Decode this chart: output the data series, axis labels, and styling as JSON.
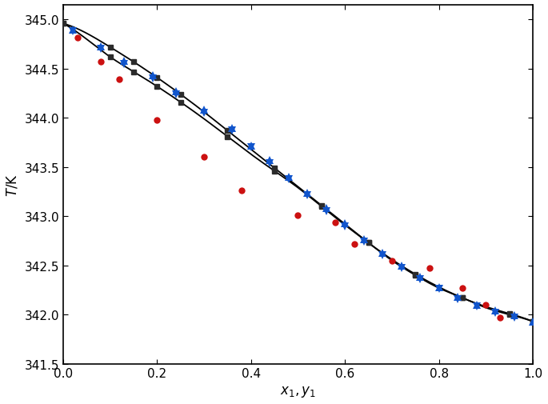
{
  "xlabel": "$x_1,y_1$",
  "ylabel": "$T$/K",
  "xlim": [
    0.0,
    1.0
  ],
  "ylim": [
    341.5,
    345.15
  ],
  "yticks": [
    341.5,
    342.0,
    342.5,
    343.0,
    343.5,
    344.0,
    344.5,
    345.0
  ],
  "xticks": [
    0.0,
    0.2,
    0.4,
    0.6,
    0.8,
    1.0
  ],
  "curve_upper_x": [
    0.0,
    0.05,
    0.1,
    0.15,
    0.2,
    0.25,
    0.3,
    0.35,
    0.4,
    0.45,
    0.5,
    0.55,
    0.6,
    0.65,
    0.7,
    0.75,
    0.8,
    0.85,
    0.9,
    0.95,
    1.0
  ],
  "curve_upper_T": [
    344.96,
    344.86,
    344.72,
    344.57,
    344.41,
    344.24,
    344.06,
    343.87,
    343.68,
    343.49,
    343.3,
    343.11,
    342.92,
    342.73,
    342.56,
    342.41,
    342.28,
    342.17,
    342.08,
    342.01,
    341.93
  ],
  "curve_lower_x": [
    0.0,
    0.05,
    0.1,
    0.15,
    0.2,
    0.25,
    0.3,
    0.35,
    0.4,
    0.45,
    0.5,
    0.55,
    0.6,
    0.65,
    0.7,
    0.75,
    0.8,
    0.85,
    0.9,
    0.95,
    1.0
  ],
  "curve_lower_T": [
    344.96,
    344.8,
    344.62,
    344.47,
    344.32,
    344.16,
    343.99,
    343.81,
    343.63,
    343.46,
    343.29,
    343.1,
    342.91,
    342.73,
    342.55,
    342.4,
    342.27,
    342.17,
    342.07,
    342.0,
    341.93
  ],
  "squares_upper_x": [
    0.0,
    0.1,
    0.15,
    0.2,
    0.25,
    0.35,
    0.45,
    0.55,
    0.65,
    0.75,
    0.85,
    0.95,
    1.0
  ],
  "squares_upper_T": [
    344.96,
    344.72,
    344.57,
    344.41,
    344.24,
    343.87,
    343.49,
    343.11,
    342.73,
    342.41,
    342.17,
    342.01,
    341.93
  ],
  "squares_lower_x": [
    0.0,
    0.1,
    0.15,
    0.2,
    0.25,
    0.35,
    0.45,
    0.55,
    0.65,
    0.75,
    0.85,
    0.95,
    1.0
  ],
  "squares_lower_T": [
    344.96,
    344.62,
    344.47,
    344.32,
    344.16,
    343.81,
    343.46,
    343.1,
    342.73,
    342.4,
    342.17,
    342.0,
    341.93
  ],
  "blue_up_x": [
    0.02,
    0.08,
    0.13,
    0.19,
    0.24,
    0.3,
    0.36,
    0.4,
    0.44,
    0.48,
    0.52,
    0.56,
    0.6,
    0.64,
    0.68,
    0.72,
    0.76,
    0.8,
    0.84,
    0.88,
    0.92,
    0.96,
    1.0
  ],
  "blue_up_T": [
    344.9,
    344.73,
    344.58,
    344.43,
    344.27,
    344.08,
    343.9,
    343.72,
    343.57,
    343.4,
    343.24,
    343.08,
    342.93,
    342.77,
    342.63,
    342.5,
    342.38,
    342.28,
    342.18,
    342.1,
    342.04,
    341.99,
    341.93
  ],
  "blue_down_x": [
    0.02,
    0.08,
    0.13,
    0.19,
    0.24,
    0.3,
    0.36,
    0.4,
    0.44,
    0.48,
    0.52,
    0.56,
    0.6,
    0.64,
    0.68,
    0.72,
    0.76,
    0.8,
    0.84,
    0.88,
    0.92,
    0.96
  ],
  "blue_down_T": [
    344.88,
    344.7,
    344.55,
    344.4,
    344.24,
    344.05,
    343.87,
    343.7,
    343.54,
    343.38,
    343.21,
    343.05,
    342.9,
    342.74,
    342.6,
    342.47,
    342.36,
    342.26,
    342.16,
    342.08,
    342.02,
    341.97
  ],
  "red_dot_x": [
    0.03,
    0.08,
    0.12,
    0.2,
    0.3,
    0.38,
    0.5,
    0.58,
    0.62,
    0.7,
    0.78,
    0.85,
    0.9,
    0.93
  ],
  "red_dot_T": [
    344.82,
    344.57,
    344.39,
    343.98,
    343.6,
    343.26,
    343.01,
    342.94,
    342.72,
    342.55,
    342.47,
    342.27,
    342.1,
    341.97
  ],
  "curve_color": "#000000",
  "square_color": "#2b2b2b",
  "blue_color": "#1155cc",
  "red_color": "#cc1111",
  "background_color": "#ffffff"
}
